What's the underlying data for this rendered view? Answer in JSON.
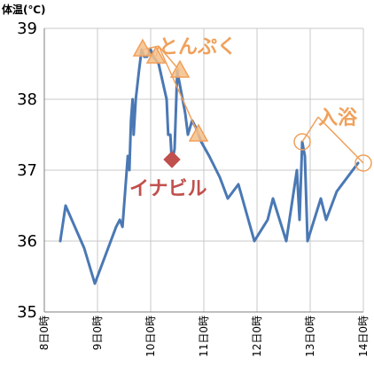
{
  "chart_data": {
    "type": "line",
    "ylabel": "体温(℃)",
    "ylim": [
      35,
      39
    ],
    "yticks": [
      "35",
      "36",
      "37",
      "38",
      "39"
    ],
    "x_ticks": [
      "8日0時",
      "9日0時",
      "10日0時",
      "11日0時",
      "12日0時",
      "13日0時",
      "14日0時"
    ],
    "xlim": [
      8,
      14
    ],
    "grid": true,
    "series": [
      {
        "color": "#4a78b4",
        "x": [
          8.3,
          8.4,
          8.75,
          8.95,
          9.35,
          9.42,
          9.47,
          9.52,
          9.57,
          9.6,
          9.63,
          9.66,
          9.68,
          9.72,
          9.78,
          9.83,
          9.88,
          9.93,
          10.0,
          10.05,
          10.15,
          10.3,
          10.33,
          10.37,
          10.4,
          10.45,
          10.5,
          10.55,
          10.6,
          10.65,
          10.7,
          10.78,
          10.85,
          10.95,
          11.1,
          11.3,
          11.45,
          11.65,
          11.95,
          12.2,
          12.3,
          12.55,
          12.75,
          12.8,
          12.85,
          12.9,
          12.95,
          13.2,
          13.3,
          13.5,
          13.9
        ],
        "y": [
          36.0,
          36.5,
          35.9,
          35.4,
          36.2,
          36.3,
          36.2,
          36.7,
          37.2,
          37.0,
          37.7,
          38.0,
          37.5,
          38.0,
          38.4,
          38.7,
          38.6,
          38.6,
          38.7,
          38.6,
          38.5,
          38.0,
          37.5,
          37.5,
          37.1,
          37.3,
          38.4,
          38.2,
          38.0,
          37.8,
          37.5,
          37.7,
          37.6,
          37.4,
          37.2,
          36.9,
          36.6,
          36.8,
          36.0,
          36.3,
          36.6,
          36.0,
          37.0,
          36.3,
          37.4,
          37.2,
          36.0,
          36.6,
          36.3,
          36.7,
          37.1
        ]
      }
    ],
    "annotations": [
      {
        "text": "とんぷく",
        "color": "#f0a05a",
        "marker": "triangle",
        "label_pos": [
          10.15,
          38.75
        ],
        "points": [
          [
            9.85,
            38.7
          ],
          [
            10.1,
            38.6
          ],
          [
            10.55,
            38.4
          ],
          [
            10.9,
            37.5
          ]
        ]
      },
      {
        "text": "イナビル",
        "color": "#c0504d",
        "marker": "diamond",
        "label_pos": [
          9.6,
          36.75
        ],
        "points": [
          [
            10.4,
            37.15
          ]
        ]
      },
      {
        "text": "入浴",
        "color": "#f0a05a",
        "marker": "circle",
        "label_pos": [
          13.15,
          37.75
        ],
        "points": [
          [
            12.85,
            37.4
          ],
          [
            14.0,
            37.1
          ]
        ]
      }
    ]
  }
}
